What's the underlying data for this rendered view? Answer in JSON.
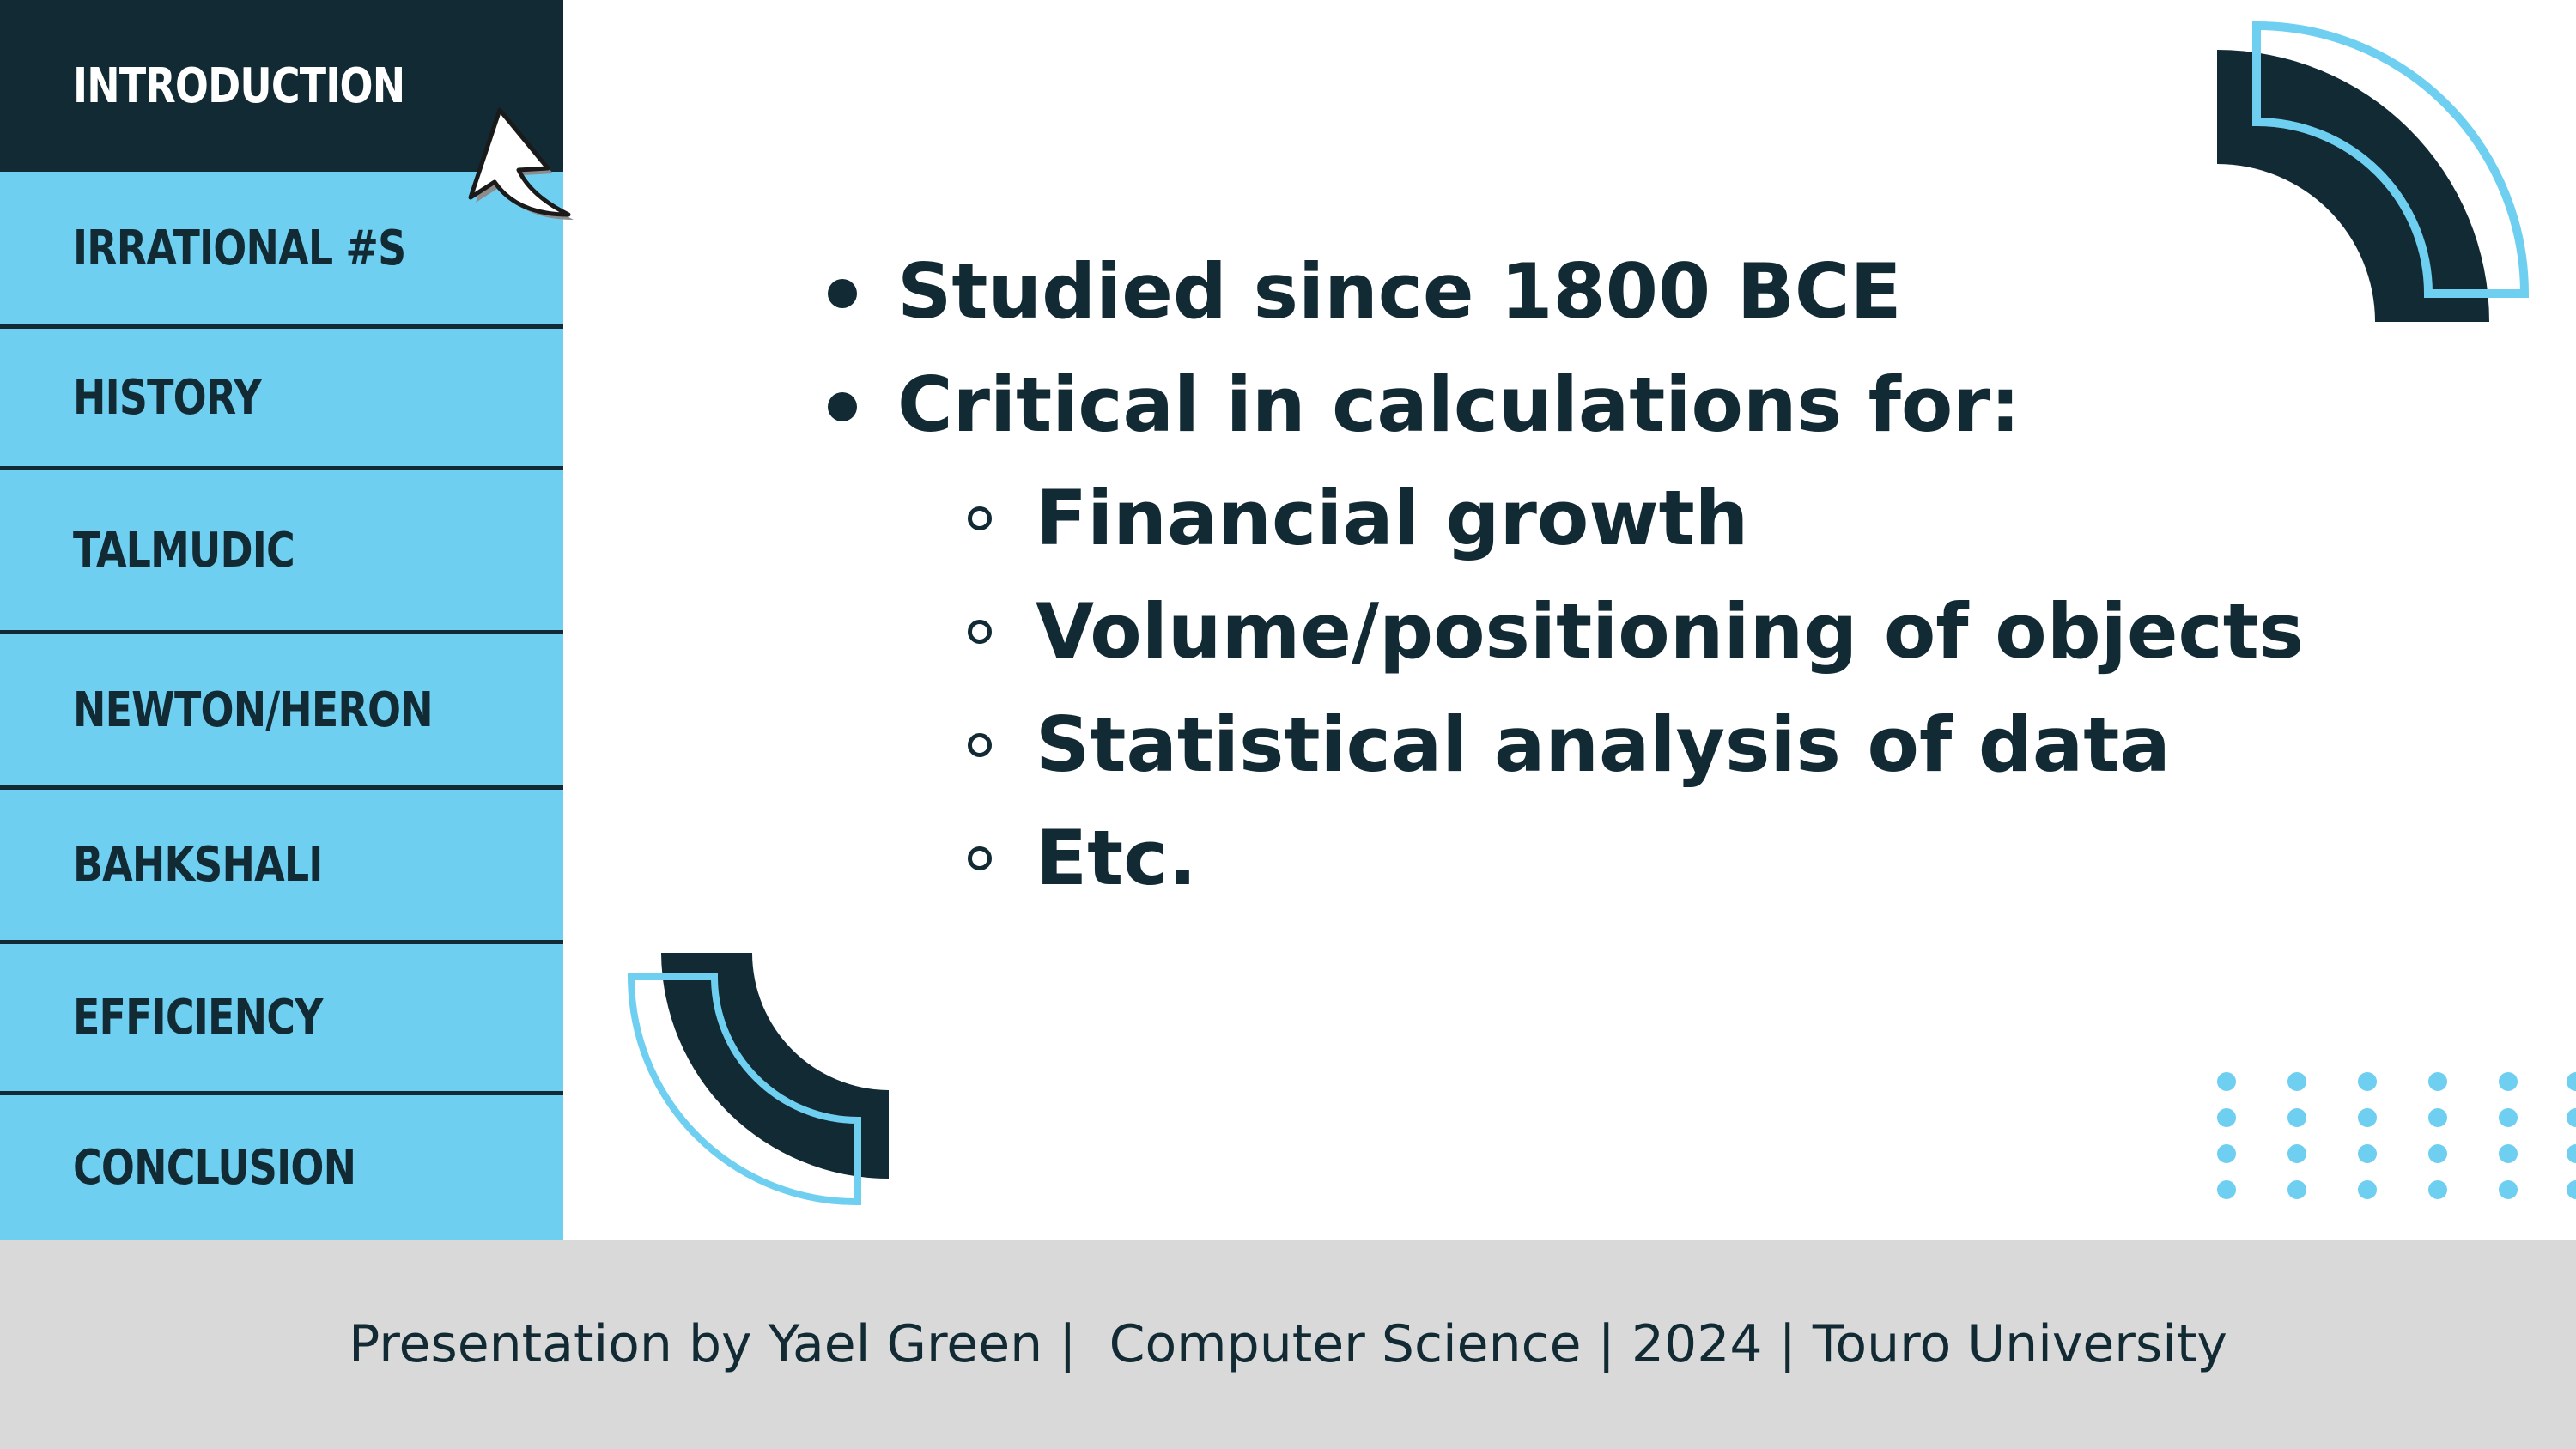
{
  "colors": {
    "navy": "#112a33",
    "sky": "#6fcff1",
    "footer_bg": "#d9d9d9",
    "background": "#ffffff"
  },
  "sidebar": {
    "items": [
      {
        "label": "INTRODUCTION",
        "active": true
      },
      {
        "label": "IRRATIONAL #S",
        "active": false
      },
      {
        "label": "HISTORY",
        "active": false
      },
      {
        "label": "TALMUDIC",
        "active": false
      },
      {
        "label": "NEWTON/HERON",
        "active": false
      },
      {
        "label": "BAHKSHALI",
        "active": false
      },
      {
        "label": "EFFICIENCY",
        "active": false
      },
      {
        "label": "CONCLUSION",
        "active": false
      }
    ]
  },
  "content": {
    "bullets": [
      {
        "text": "Studied since 1800 BCE",
        "level": 1
      },
      {
        "text": "Critical in calculations for:",
        "level": 1
      },
      {
        "text": "Financial growth",
        "level": 2
      },
      {
        "text": "Volume/positioning of objects",
        "level": 2
      },
      {
        "text": "Statistical analysis of data",
        "level": 2
      },
      {
        "text": "Etc.",
        "level": 2
      }
    ]
  },
  "footer": {
    "text": "Presentation by Yael Green |  Computer Science | 2024 | Touro University"
  },
  "icons": {
    "cursor": "mouse-pointer-arrow-icon",
    "decor_top_right": "quarter-arc-decoration",
    "decor_bottom_left": "quarter-arc-decoration",
    "decor_dots": "dot-grid-decoration"
  }
}
